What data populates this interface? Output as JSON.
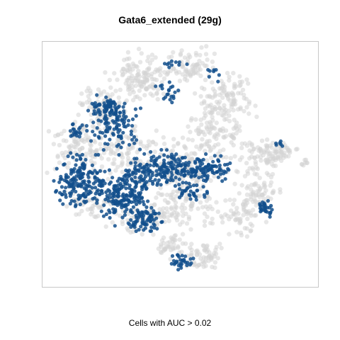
{
  "chart_data": {
    "type": "scatter",
    "title": "Gata6_extended (29g)",
    "xlabel": "Cells with AUC > 0.02",
    "ylabel": "",
    "grid": false,
    "series": [
      {
        "color": "#d3d3d3"
      },
      {
        "color": "#124f8c"
      }
    ]
  }
}
